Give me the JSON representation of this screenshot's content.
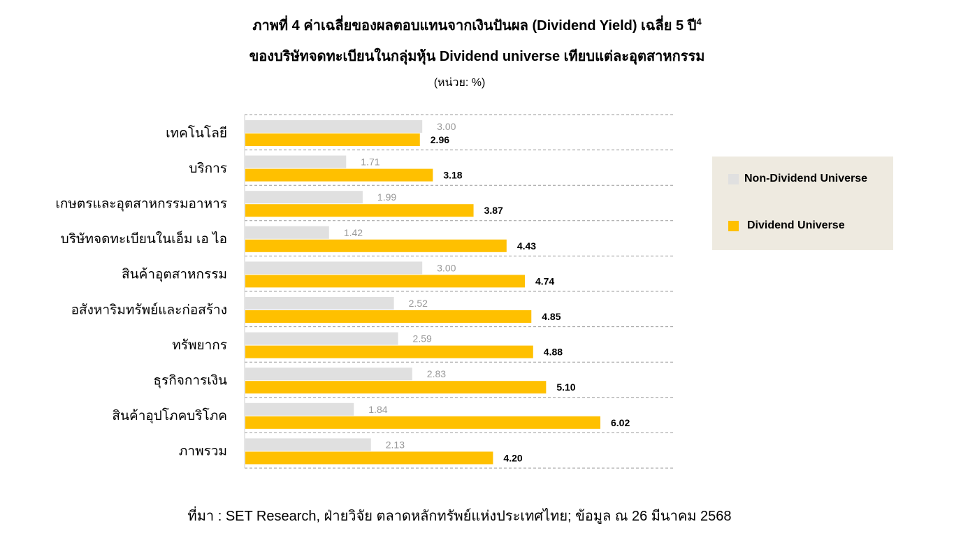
{
  "title": {
    "line1": "ภาพที่ 4 ค่าเฉลี่ยของผลตอบแทนจากเงินปันผล (Dividend Yield) เฉลี่ย 5 ปี",
    "line1_sup": "4",
    "line2": "ของบริษัทจดทะเบียนในกลุ่มหุ้น Dividend universe เทียบแต่ละอุตสาหกรรม",
    "unit": "(หน่วย: %)"
  },
  "legend": {
    "items": [
      {
        "label": "Non-Dividend Universe",
        "color": "#e0e0e0"
      },
      {
        "label": "Dividend Universe",
        "color": "#ffc000"
      }
    ]
  },
  "source": "ที่มา : SET Research, ฝ่ายวิจัย ตลาดหลักทรัพย์แห่งประเทศไทย; ข้อมูล ณ 26 มีนาคม 2568",
  "chart_data": {
    "type": "bar",
    "orientation": "horizontal",
    "categories": [
      "เทคโนโลยี",
      "บริการ",
      "เกษตรและอุตสาหกรรมอาหาร",
      "บริษัทจดทะเบียนในเอ็ม เอ ไอ",
      "สินค้าอุตสาหกรรม",
      "อสังหาริมทรัพย์และก่อสร้าง",
      "ทรัพยากร",
      "ธุรกิจการเงิน",
      "สินค้าอุปโภคบริโภค",
      "ภาพรวม"
    ],
    "series": [
      {
        "name": "Non-Dividend Universe",
        "color": "#e0e0e0",
        "label_color": "#999999",
        "values": [
          3.0,
          1.71,
          1.99,
          1.42,
          3.0,
          2.52,
          2.59,
          2.83,
          1.84,
          2.13
        ],
        "labels": [
          "3.00",
          "1.71",
          "1.99",
          "1.42",
          "3.00",
          "2.52",
          "2.59",
          "2.83",
          "1.84",
          "2.13"
        ]
      },
      {
        "name": "Dividend Universe",
        "color": "#ffc000",
        "label_color": "#000000",
        "values": [
          2.96,
          3.18,
          3.87,
          4.43,
          4.74,
          4.85,
          4.88,
          5.1,
          6.02,
          4.2
        ],
        "labels": [
          "2.96",
          "3.18",
          "3.87",
          "4.43",
          "4.74",
          "4.85",
          "4.88",
          "5.10",
          "6.02",
          "4.20"
        ]
      }
    ],
    "xlim": [
      0,
      7.3
    ],
    "grid": true,
    "legend_position": "right"
  }
}
